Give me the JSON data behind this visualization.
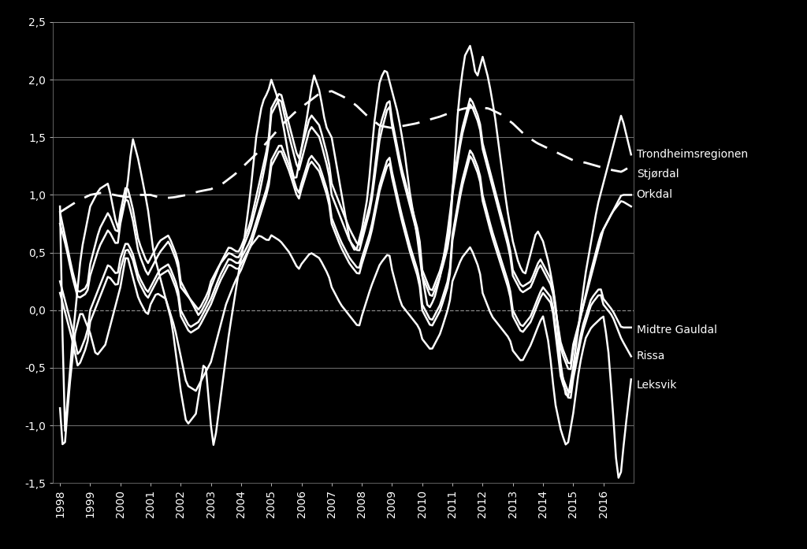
{
  "background_color": "#000000",
  "text_color": "#ffffff",
  "line_color": "#ffffff",
  "grid_color": "#888888",
  "zero_line_color": "#aaaaaa",
  "ylim": [
    -1.5,
    2.5
  ],
  "xlim": [
    1997.75,
    2017.0
  ],
  "y_ticks": [
    -1.5,
    -1.0,
    -0.5,
    0.0,
    0.5,
    1.0,
    1.5,
    2.0,
    2.5
  ],
  "x_ticks": [
    1998,
    1999,
    2000,
    2001,
    2002,
    2003,
    2004,
    2005,
    2006,
    2007,
    2008,
    2009,
    2010,
    2011,
    2012,
    2013,
    2014,
    2015,
    2016
  ],
  "label_fontsize": 10,
  "tick_fontsize": 10,
  "lw_solid": 1.8,
  "lw_dashed": 2.0
}
